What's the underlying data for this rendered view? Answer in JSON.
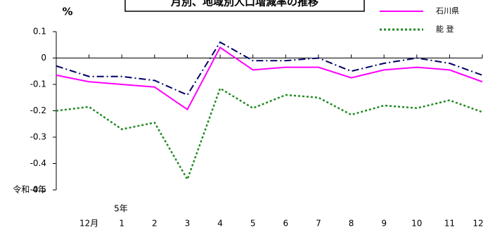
{
  "chart_data": {
    "type": "line",
    "title": "月別、地域別人口増減率の推移",
    "y_label": "%",
    "annotations": [
      "令和 4年",
      "5年"
    ],
    "categories": [
      null,
      "12月",
      "1",
      "2",
      "3",
      "4",
      "5",
      "6",
      "7",
      "8",
      "9",
      "10",
      "11",
      "12"
    ],
    "series": [
      {
        "name": "石川県",
        "color": "#ff00ff",
        "style": "solid",
        "values": [
          -0.065,
          -0.09,
          -0.1,
          -0.11,
          -0.195,
          0.04,
          -0.045,
          -0.035,
          -0.035,
          -0.075,
          -0.045,
          -0.035,
          -0.045,
          -0.09
        ]
      },
      {
        "name": "能 登",
        "color": "#228b22",
        "style": "dotted",
        "values": [
          -0.2,
          -0.185,
          -0.27,
          -0.245,
          -0.46,
          -0.115,
          -0.19,
          -0.14,
          -0.15,
          -0.215,
          -0.18,
          -0.19,
          -0.16,
          -0.205
        ]
      },
      {
        "color": "#000066",
        "style": "dashdot",
        "values": [
          -0.03,
          -0.07,
          -0.07,
          -0.085,
          -0.14,
          0.06,
          -0.01,
          -0.01,
          0,
          -0.05,
          -0.02,
          0,
          -0.02,
          -0.065
        ]
      }
    ],
    "ylim": [
      -0.5,
      0.1
    ],
    "yticks": [
      0.1,
      0,
      -0.1,
      -0.2,
      -0.3,
      -0.4,
      -0.5
    ]
  }
}
